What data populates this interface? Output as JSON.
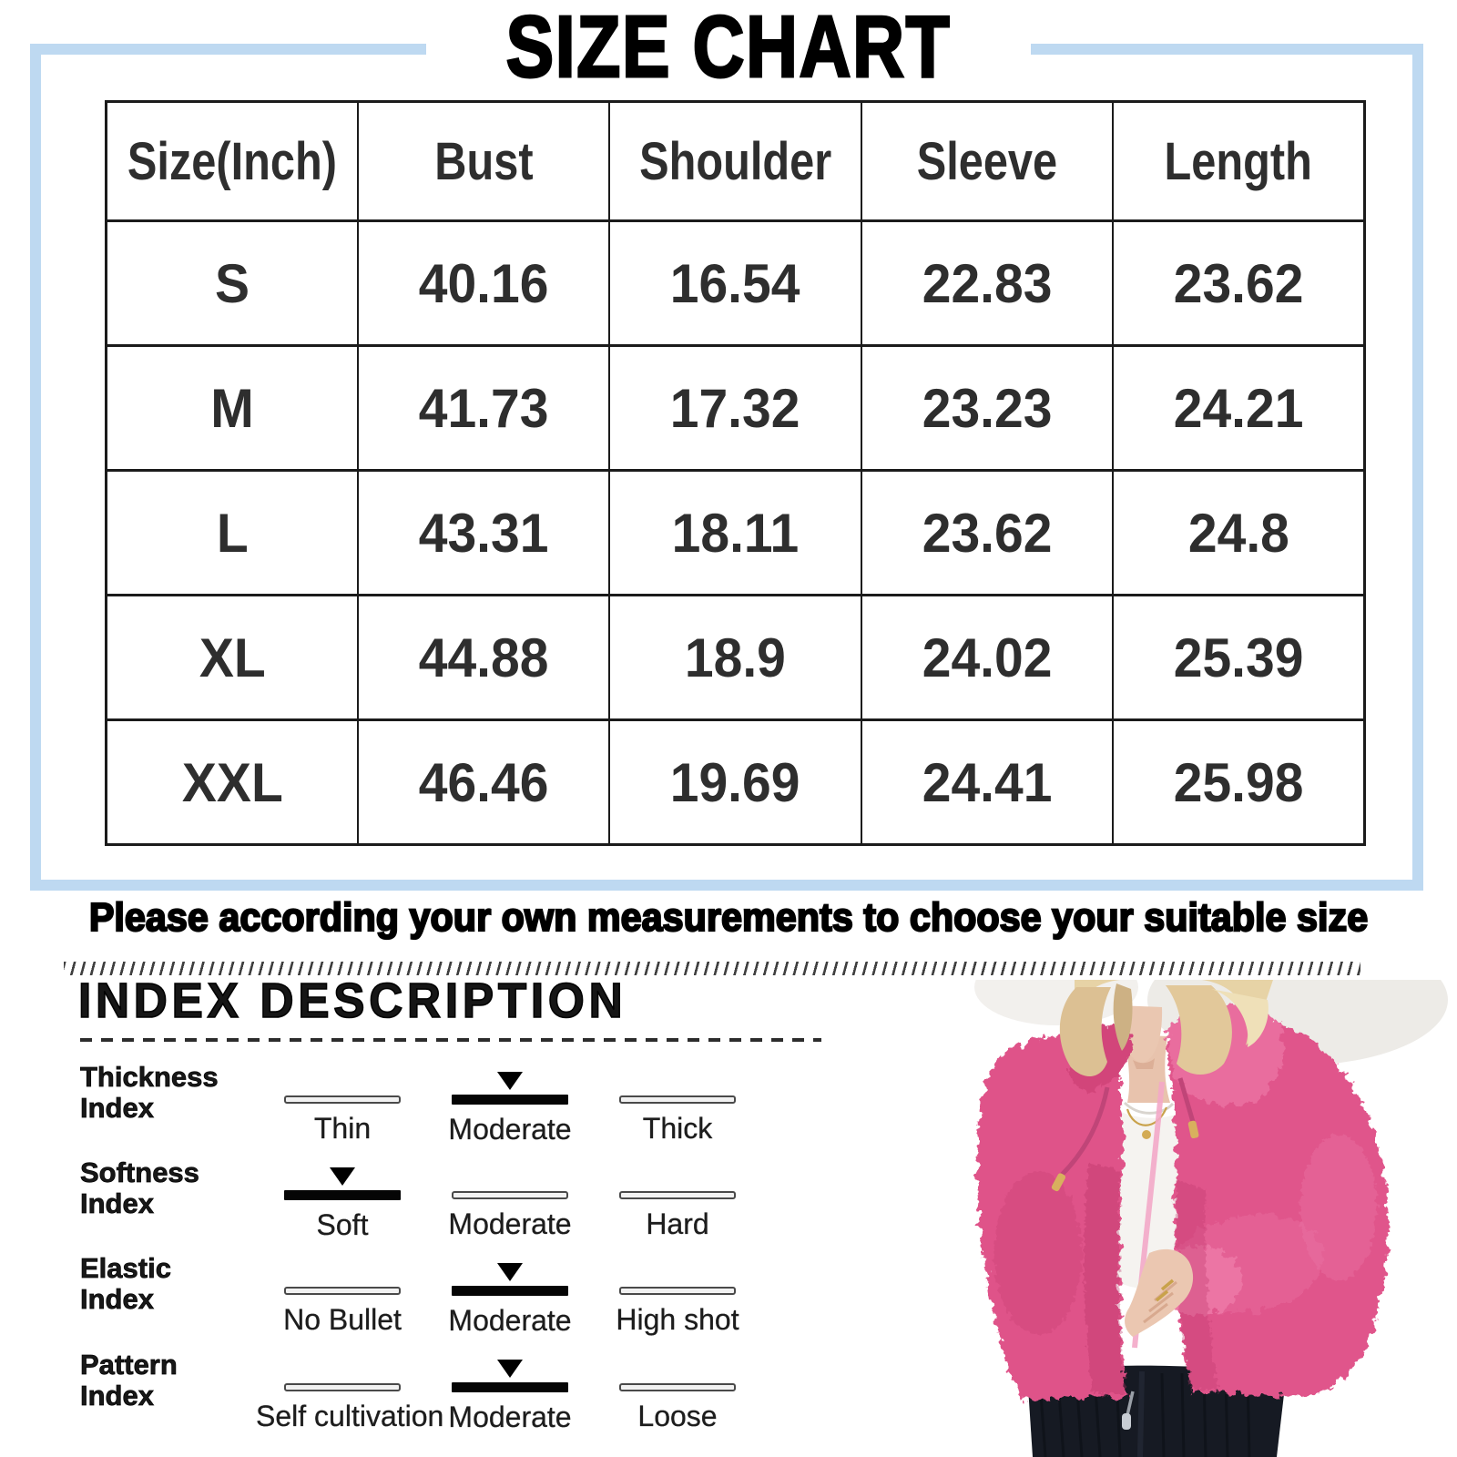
{
  "title": "SIZE CHART",
  "size_chart": {
    "headers": [
      "Size(Inch)",
      "Bust",
      "Shoulder",
      "Sleeve",
      "Length"
    ],
    "rows": [
      {
        "size": "S",
        "values": [
          "40.16",
          "16.54",
          "22.83",
          "23.62"
        ]
      },
      {
        "size": "M",
        "values": [
          "41.73",
          "17.32",
          "23.23",
          "24.21"
        ]
      },
      {
        "size": "L",
        "values": [
          "43.31",
          "18.11",
          "23.62",
          "24.8"
        ]
      },
      {
        "size": "XL",
        "values": [
          "44.88",
          "18.9",
          "24.02",
          "25.39"
        ]
      },
      {
        "size": "XXL",
        "values": [
          "46.46",
          "19.69",
          "24.41",
          "25.98"
        ]
      }
    ]
  },
  "note": "Please according your own measurements to choose your suitable size",
  "index_description": {
    "heading": "INDEX DESCRIPTION",
    "rows": [
      {
        "label_line1": "Thickness",
        "label_line2": "Index",
        "options": [
          {
            "text": "Thin",
            "selected": false
          },
          {
            "text": "Moderate",
            "selected": true
          },
          {
            "text": "Thick",
            "selected": false
          }
        ]
      },
      {
        "label_line1": "Softness",
        "label_line2": "Index",
        "options": [
          {
            "text": "Soft",
            "selected": true
          },
          {
            "text": "Moderate",
            "selected": false
          },
          {
            "text": "Hard",
            "selected": false
          }
        ]
      },
      {
        "label_line1": "Elastic",
        "label_line2": "Index",
        "options": [
          {
            "text": "No Bullet",
            "selected": false
          },
          {
            "text": "Moderate",
            "selected": true
          },
          {
            "text": "High shot",
            "selected": false
          }
        ]
      },
      {
        "label_line1": "Pattern",
        "label_line2": "Index",
        "options": [
          {
            "text": "Self cultivation",
            "selected": false
          },
          {
            "text": "Moderate",
            "selected": true
          },
          {
            "text": "Loose",
            "selected": false
          }
        ]
      }
    ]
  },
  "colors": {
    "frame_blue": "#bed9f1",
    "table_border": "#1b1b1b",
    "indicator_selected": "#050505",
    "jacket_pink": "#df5289"
  }
}
